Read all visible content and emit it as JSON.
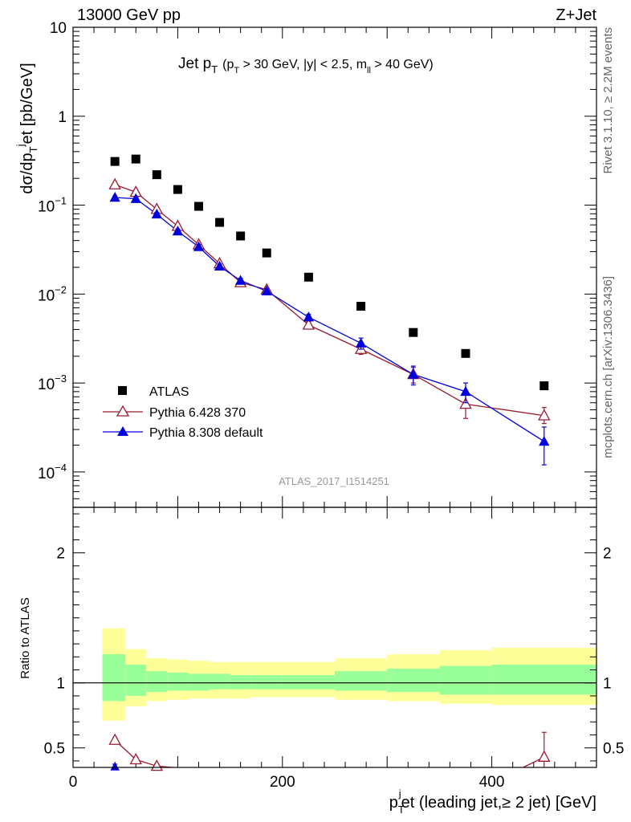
{
  "header": {
    "left_title": "13000 GeV pp",
    "right_title": "Z+Jet"
  },
  "side_labels": {
    "rivet": "Rivet 3.1.10, ≥ 2.2M events",
    "mcplots": "mcplots.cern.ch [arXiv:1306.3436]"
  },
  "analysis_id": "ATLAS_2017_I1514251",
  "chart_data": [
    {
      "type": "scatter",
      "title_main": "Jet p",
      "title_main_sub": "T",
      "title_cuts_a": "(p",
      "title_cuts_a_sub": "T",
      "title_cuts_b": " > 30 GeV, |y| < 2.5, m",
      "title_cuts_b_sub": "ll",
      "title_cuts_c": " > 40 GeV)",
      "ylabel": "dσ/dp",
      "ylabel_sub": "T",
      "ylabel_sup": "j",
      "ylabel_tail": "et [pb/GeV]",
      "y_scale": "log",
      "ylim": [
        4e-05,
        10
      ],
      "xlim": [
        0,
        500
      ],
      "y_ticks": [
        {
          "v": 10,
          "label": "10"
        },
        {
          "v": 1,
          "label": "1"
        },
        {
          "v": 0.1,
          "base": "10",
          "exp": "−1"
        },
        {
          "v": 0.01,
          "base": "10",
          "exp": "−2"
        },
        {
          "v": 0.001,
          "base": "10",
          "exp": "−3"
        },
        {
          "v": 0.0001,
          "base": "10",
          "exp": "−4"
        }
      ],
      "legend_position": "lower-left",
      "series": [
        {
          "name": "ATLAS",
          "color": "#000000",
          "marker": "square",
          "x": [
            40,
            60,
            80,
            100,
            120,
            140,
            160,
            185,
            225,
            275,
            325,
            375,
            450
          ],
          "y": [
            0.31,
            0.33,
            0.22,
            0.15,
            0.097,
            0.064,
            0.045,
            0.029,
            0.0155,
            0.0073,
            0.0037,
            0.00215,
            0.00093
          ]
        },
        {
          "name": "Pythia 6.428 370",
          "color": "#9b1b30",
          "marker": "open-triangle",
          "x": [
            40,
            60,
            80,
            100,
            120,
            140,
            160,
            185,
            225,
            275,
            325,
            375,
            450
          ],
          "y": [
            0.17,
            0.14,
            0.09,
            0.058,
            0.036,
            0.022,
            0.0135,
            0.0112,
            0.0045,
            0.0024,
            0.00125,
            0.00058,
            0.00043
          ],
          "err_lo": [
            0.008,
            0.007,
            0.005,
            0.003,
            0.002,
            0.0012,
            0.0008,
            0.0007,
            0.0004,
            0.0003,
            0.00025,
            0.00018,
            8e-05
          ],
          "err_hi": [
            0.008,
            0.007,
            0.005,
            0.003,
            0.002,
            0.0012,
            0.0008,
            0.0007,
            0.0004,
            0.0003,
            0.00025,
            0.00018,
            0.0001
          ]
        },
        {
          "name": "Pythia 8.308 default",
          "color": "#0000dd",
          "marker": "filled-triangle",
          "x": [
            40,
            60,
            80,
            100,
            120,
            140,
            160,
            185,
            225,
            275,
            325,
            375,
            450
          ],
          "y": [
            0.122,
            0.118,
            0.079,
            0.051,
            0.034,
            0.0205,
            0.0142,
            0.0108,
            0.0055,
            0.0028,
            0.00125,
            0.0008,
            0.00022
          ],
          "err_lo": [
            0.005,
            0.005,
            0.004,
            0.003,
            0.002,
            0.0012,
            0.0009,
            0.0007,
            0.0004,
            0.0004,
            0.0003,
            0.0002,
            0.0001
          ],
          "err_hi": [
            0.005,
            0.005,
            0.004,
            0.003,
            0.002,
            0.0012,
            0.0009,
            0.0007,
            0.0004,
            0.0004,
            0.0003,
            0.0002,
            0.0001
          ]
        }
      ]
    },
    {
      "type": "scatter",
      "ylabel": "Ratio to ATLAS",
      "xlabel_main": "p",
      "xlabel_sub": "T",
      "xlabel_sup": "j",
      "xlabel_tail": "et (leading jet,≥ 2 jet) [GeV]",
      "ylim": [
        0.35,
        2.35
      ],
      "xlim": [
        0,
        500
      ],
      "y_ticks": [
        {
          "v": 2,
          "label": "2"
        },
        {
          "v": 1,
          "label": "1"
        },
        {
          "v": 0.5,
          "label": "0.5"
        }
      ],
      "x_ticks": [
        {
          "v": 0,
          "label": "0"
        },
        {
          "v": 200,
          "label": "200"
        },
        {
          "v": 400,
          "label": "400"
        }
      ],
      "reference_line": 1,
      "bands": {
        "stat_color": "#99ff99",
        "total_color": "#ffff99",
        "bins": [
          {
            "x0": 28,
            "x1": 50,
            "total_lo": 0.71,
            "total_hi": 1.42,
            "stat_lo": 0.86,
            "stat_hi": 1.22
          },
          {
            "x0": 50,
            "x1": 70,
            "total_lo": 0.82,
            "total_hi": 1.26,
            "stat_lo": 0.9,
            "stat_hi": 1.14
          },
          {
            "x0": 70,
            "x1": 90,
            "total_lo": 0.86,
            "total_hi": 1.19,
            "stat_lo": 0.93,
            "stat_hi": 1.09
          },
          {
            "x0": 90,
            "x1": 110,
            "total_lo": 0.87,
            "total_hi": 1.18,
            "stat_lo": 0.94,
            "stat_hi": 1.08
          },
          {
            "x0": 110,
            "x1": 130,
            "total_lo": 0.88,
            "total_hi": 1.17,
            "stat_lo": 0.94,
            "stat_hi": 1.07
          },
          {
            "x0": 130,
            "x1": 150,
            "total_lo": 0.88,
            "total_hi": 1.16,
            "stat_lo": 0.95,
            "stat_hi": 1.07
          },
          {
            "x0": 150,
            "x1": 170,
            "total_lo": 0.88,
            "total_hi": 1.16,
            "stat_lo": 0.95,
            "stat_hi": 1.06
          },
          {
            "x0": 170,
            "x1": 200,
            "total_lo": 0.89,
            "total_hi": 1.16,
            "stat_lo": 0.95,
            "stat_hi": 1.06
          },
          {
            "x0": 200,
            "x1": 250,
            "total_lo": 0.89,
            "total_hi": 1.16,
            "stat_lo": 0.95,
            "stat_hi": 1.06
          },
          {
            "x0": 250,
            "x1": 300,
            "total_lo": 0.87,
            "total_hi": 1.19,
            "stat_lo": 0.94,
            "stat_hi": 1.09
          },
          {
            "x0": 300,
            "x1": 350,
            "total_lo": 0.86,
            "total_hi": 1.22,
            "stat_lo": 0.93,
            "stat_hi": 1.11
          },
          {
            "x0": 350,
            "x1": 400,
            "total_lo": 0.84,
            "total_hi": 1.25,
            "stat_lo": 0.91,
            "stat_hi": 1.13
          },
          {
            "x0": 400,
            "x1": 500,
            "total_lo": 0.83,
            "total_hi": 1.27,
            "stat_lo": 0.91,
            "stat_hi": 1.14
          }
        ]
      },
      "series": [
        {
          "name": "Pythia 6.428 370",
          "color": "#9b1b30",
          "marker": "open-triangle",
          "x": [
            40,
            60,
            80,
            450
          ],
          "y": [
            0.56,
            0.41,
            0.36,
            0.43
          ],
          "err_lo": [
            0.02,
            0.02,
            0.02,
            0.08
          ],
          "err_hi": [
            0.02,
            0.02,
            0.02,
            0.19
          ]
        },
        {
          "name": "Pythia 8.308 default",
          "color": "#0000dd",
          "marker": "filled-triangle",
          "x": [
            40
          ],
          "y": [
            0.355
          ],
          "err_lo": [
            0.02
          ],
          "err_hi": [
            0.02
          ]
        }
      ]
    }
  ]
}
